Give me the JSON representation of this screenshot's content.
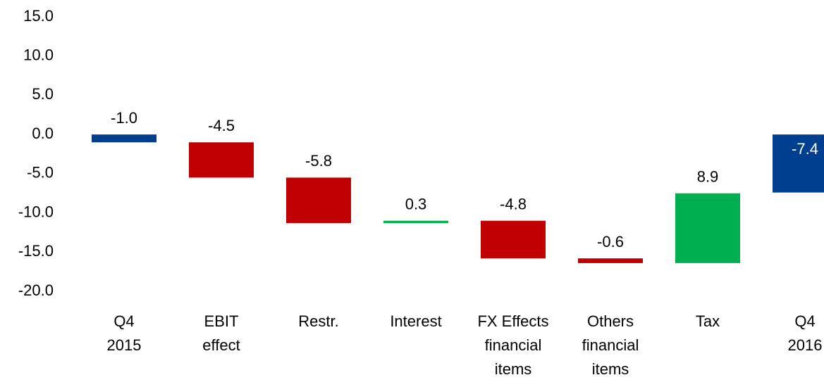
{
  "chart_data": {
    "type": "waterfall",
    "categories": [
      [
        "Q4",
        "2015"
      ],
      [
        "EBIT",
        "effect"
      ],
      [
        "Restr."
      ],
      [
        "Interest"
      ],
      [
        "FX Effects",
        "financial",
        "items"
      ],
      [
        "Others",
        "financial",
        "items"
      ],
      [
        "Tax"
      ],
      [
        "Q4",
        "2016"
      ]
    ],
    "values": [
      -1.0,
      -4.5,
      -5.8,
      0.3,
      -4.8,
      -0.6,
      8.9,
      -7.4
    ],
    "value_labels": [
      "-1.0",
      "-4.5",
      "-5.8",
      "0.3",
      "-4.8",
      "-0.6",
      "8.9",
      "-7.4"
    ],
    "colors": [
      "#003f8f",
      "#c00000",
      "#c00000",
      "#00b050",
      "#c00000",
      "#c00000",
      "#00b050",
      "#003f8f"
    ],
    "ylim": [
      -20,
      15
    ],
    "yticks": [
      {
        "value": -20,
        "label": "-20.0"
      },
      {
        "value": -15,
        "label": "-15.0"
      },
      {
        "value": -10,
        "label": "-10.0"
      },
      {
        "value": -5,
        "label": "-5.0"
      },
      {
        "value": 0,
        "label": "0.0"
      },
      {
        "value": 5,
        "label": "5.0"
      },
      {
        "value": 10,
        "label": "10.0"
      },
      {
        "value": 15,
        "label": "15.0"
      }
    ]
  }
}
